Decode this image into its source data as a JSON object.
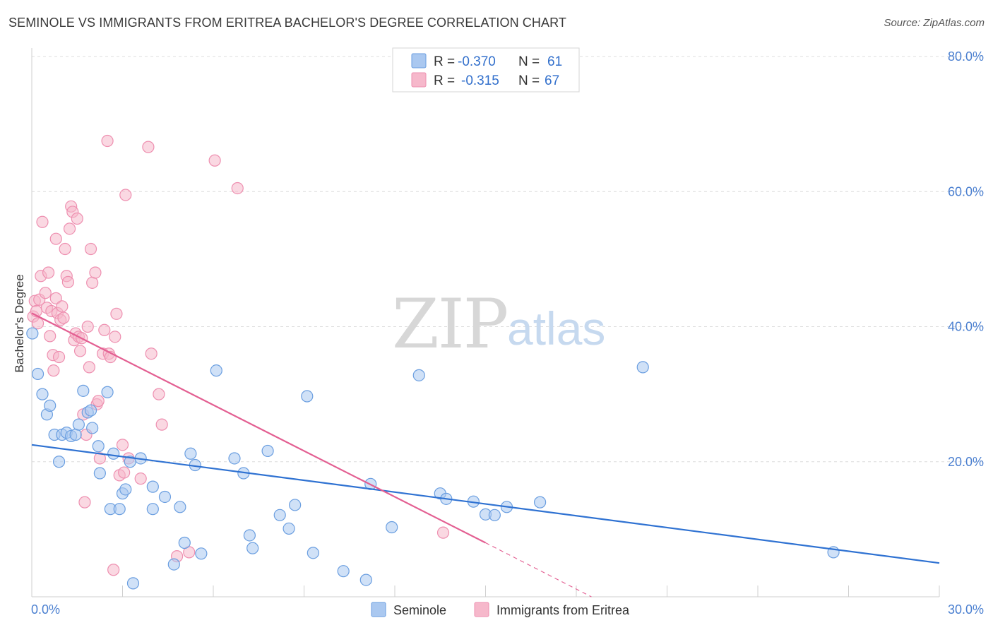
{
  "header": {
    "title": "SEMINOLE VS IMMIGRANTS FROM ERITREA BACHELOR'S DEGREE CORRELATION CHART",
    "source": "Source: ZipAtlas.com"
  },
  "watermark": {
    "zip": "ZIP",
    "atlas": "atlas"
  },
  "colors": {
    "seminole_fill": "#aac8f0",
    "seminole_stroke": "#6a9ee0",
    "seminole_line": "#2f72d2",
    "eritrea_fill": "#f6b8cb",
    "eritrea_stroke": "#ee8fb0",
    "eritrea_line": "#e35f92",
    "axis_text": "#4a7fd0",
    "grid": "#dcdcdc"
  },
  "legend_top": {
    "rows": [
      {
        "r_label": "R =",
        "r_value": "-0.370",
        "n_label": "N =",
        "n_value": "61"
      },
      {
        "r_label": "R =",
        "r_value": "-0.315",
        "n_label": "N =",
        "n_value": "67"
      }
    ]
  },
  "legend_bottom": {
    "items": [
      {
        "label": "Seminole"
      },
      {
        "label": "Immigrants from Eritrea"
      }
    ]
  },
  "chart_data": {
    "type": "scatter",
    "title": "SEMINOLE VS IMMIGRANTS FROM ERITREA BACHELOR'S DEGREE CORRELATION CHART",
    "xlabel": "",
    "ylabel": "Bachelor's Degree",
    "xlim": [
      0,
      30
    ],
    "ylim": [
      0,
      80
    ],
    "x_ticks": [
      0,
      3,
      6,
      9,
      12,
      15,
      18,
      21,
      24,
      27,
      30
    ],
    "x_tick_labels": {
      "min": "0.0%",
      "max": "30.0%"
    },
    "y_ticks": [
      20,
      40,
      60,
      80
    ],
    "y_tick_labels": [
      "20.0%",
      "40.0%",
      "60.0%",
      "80.0%"
    ],
    "grid": true,
    "series": [
      {
        "name": "Seminole",
        "r": -0.37,
        "n": 61,
        "trend": {
          "x": [
            0,
            30
          ],
          "y": [
            22.5,
            5.0
          ]
        },
        "points": [
          [
            0.02,
            39.0
          ],
          [
            0.2,
            33.0
          ],
          [
            0.35,
            30.0
          ],
          [
            0.5,
            27.0
          ],
          [
            0.6,
            28.3
          ],
          [
            0.75,
            24.0
          ],
          [
            0.9,
            20.0
          ],
          [
            1.0,
            24.0
          ],
          [
            1.15,
            24.3
          ],
          [
            1.3,
            23.8
          ],
          [
            1.45,
            24.0
          ],
          [
            1.55,
            25.5
          ],
          [
            1.7,
            30.5
          ],
          [
            1.85,
            27.3
          ],
          [
            1.95,
            27.6
          ],
          [
            2.0,
            25.0
          ],
          [
            2.2,
            22.3
          ],
          [
            2.25,
            18.3
          ],
          [
            2.5,
            30.3
          ],
          [
            2.6,
            13.0
          ],
          [
            2.7,
            21.2
          ],
          [
            2.9,
            13.0
          ],
          [
            3.0,
            15.3
          ],
          [
            3.1,
            15.9
          ],
          [
            3.25,
            20.0
          ],
          [
            3.35,
            2.0
          ],
          [
            3.6,
            20.5
          ],
          [
            4.0,
            16.3
          ],
          [
            4.0,
            13.0
          ],
          [
            4.4,
            14.8
          ],
          [
            4.7,
            4.8
          ],
          [
            4.9,
            13.3
          ],
          [
            5.05,
            8.0
          ],
          [
            5.25,
            21.2
          ],
          [
            5.4,
            19.5
          ],
          [
            5.6,
            6.4
          ],
          [
            6.1,
            33.5
          ],
          [
            6.7,
            20.5
          ],
          [
            7.0,
            18.3
          ],
          [
            7.2,
            9.1
          ],
          [
            7.3,
            7.2
          ],
          [
            7.8,
            21.6
          ],
          [
            8.2,
            12.1
          ],
          [
            8.5,
            10.1
          ],
          [
            8.7,
            13.6
          ],
          [
            9.1,
            29.7
          ],
          [
            9.3,
            6.5
          ],
          [
            10.3,
            3.8
          ],
          [
            11.05,
            2.5
          ],
          [
            11.2,
            16.7
          ],
          [
            11.9,
            10.3
          ],
          [
            12.8,
            32.8
          ],
          [
            13.5,
            15.3
          ],
          [
            13.7,
            14.5
          ],
          [
            14.6,
            14.1
          ],
          [
            15.0,
            12.2
          ],
          [
            15.3,
            12.1
          ],
          [
            15.7,
            13.3
          ],
          [
            16.8,
            14.0
          ],
          [
            20.2,
            34.0
          ],
          [
            26.5,
            6.6
          ]
        ]
      },
      {
        "name": "Immigrants from Eritrea",
        "r": -0.315,
        "n": 67,
        "trend": {
          "x": [
            0,
            15
          ],
          "y": [
            42.0,
            8.0
          ]
        },
        "trend_dashed": {
          "x": [
            15,
            18.5
          ],
          "y": [
            8.0,
            0.0
          ]
        },
        "points": [
          [
            0.05,
            41.5
          ],
          [
            0.1,
            43.8
          ],
          [
            0.15,
            42.3
          ],
          [
            0.2,
            40.5
          ],
          [
            0.25,
            44.0
          ],
          [
            0.3,
            47.5
          ],
          [
            0.35,
            55.5
          ],
          [
            0.45,
            45.0
          ],
          [
            0.5,
            42.8
          ],
          [
            0.55,
            48.0
          ],
          [
            0.6,
            38.6
          ],
          [
            0.65,
            42.3
          ],
          [
            0.7,
            35.8
          ],
          [
            0.72,
            33.5
          ],
          [
            0.8,
            53.0
          ],
          [
            0.8,
            44.2
          ],
          [
            0.85,
            42.0
          ],
          [
            0.9,
            35.5
          ],
          [
            0.95,
            41.0
          ],
          [
            1.0,
            43.0
          ],
          [
            1.05,
            41.3
          ],
          [
            1.1,
            51.5
          ],
          [
            1.15,
            47.5
          ],
          [
            1.2,
            46.6
          ],
          [
            1.25,
            54.5
          ],
          [
            1.3,
            57.8
          ],
          [
            1.35,
            57.0
          ],
          [
            1.4,
            38.0
          ],
          [
            1.45,
            39.0
          ],
          [
            1.5,
            56.0
          ],
          [
            1.55,
            38.5
          ],
          [
            1.6,
            36.4
          ],
          [
            1.65,
            38.3
          ],
          [
            1.7,
            27.0
          ],
          [
            1.75,
            14.0
          ],
          [
            1.8,
            24.0
          ],
          [
            1.85,
            40.0
          ],
          [
            1.9,
            34.0
          ],
          [
            1.95,
            51.5
          ],
          [
            2.0,
            46.5
          ],
          [
            2.1,
            48.0
          ],
          [
            2.15,
            28.5
          ],
          [
            2.2,
            29.0
          ],
          [
            2.25,
            20.5
          ],
          [
            2.35,
            36.0
          ],
          [
            2.4,
            39.5
          ],
          [
            2.5,
            67.5
          ],
          [
            2.55,
            36.0
          ],
          [
            2.6,
            35.5
          ],
          [
            2.7,
            4.0
          ],
          [
            2.75,
            38.5
          ],
          [
            2.8,
            41.9
          ],
          [
            2.9,
            18.0
          ],
          [
            3.0,
            22.5
          ],
          [
            3.05,
            18.4
          ],
          [
            3.1,
            59.5
          ],
          [
            3.2,
            20.5
          ],
          [
            3.6,
            17.5
          ],
          [
            3.85,
            66.6
          ],
          [
            3.95,
            36.0
          ],
          [
            4.2,
            30.0
          ],
          [
            4.3,
            25.5
          ],
          [
            4.8,
            6.0
          ],
          [
            5.2,
            6.6
          ],
          [
            6.05,
            64.6
          ],
          [
            6.8,
            60.5
          ],
          [
            13.6,
            9.5
          ]
        ]
      }
    ]
  }
}
